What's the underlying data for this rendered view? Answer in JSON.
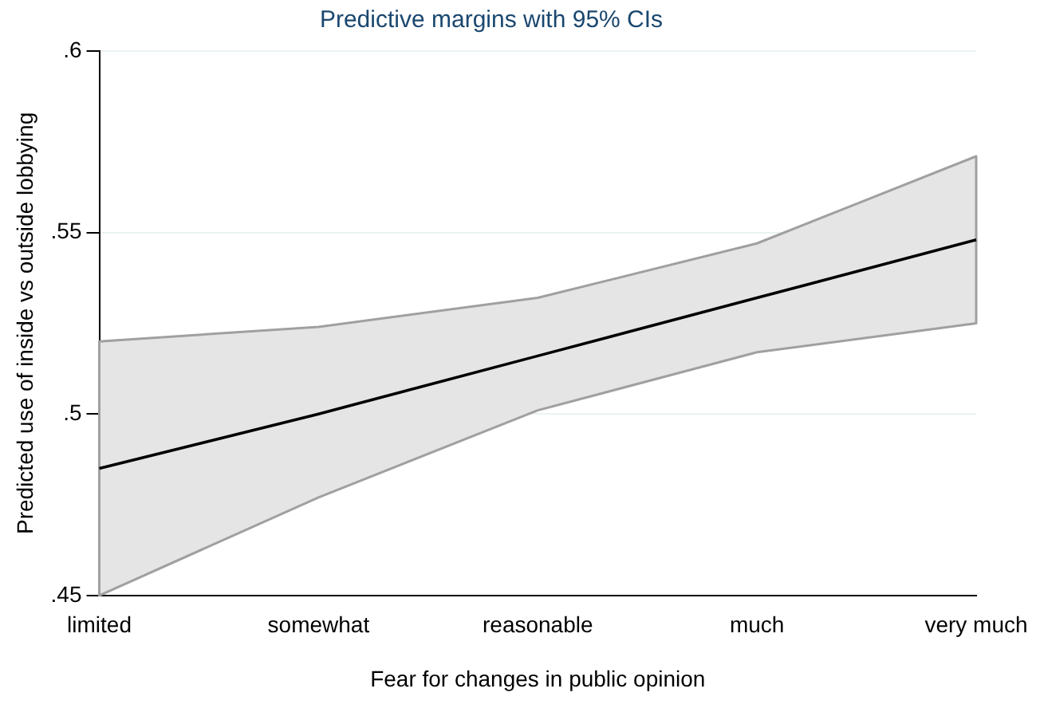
{
  "chart_data": {
    "type": "line",
    "title": "Predictive margins with 95% CIs",
    "xlabel": "Fear for changes in public opinion",
    "ylabel": "Predicted use of inside vs outside lobbying",
    "categories": [
      "limited",
      "somewhat",
      "reasonable",
      "much",
      "very much"
    ],
    "series": [
      {
        "color": "#000000",
        "values": [
          0.485,
          0.5,
          0.516,
          0.532,
          0.548
        ],
        "lower": [
          0.45,
          0.477,
          0.501,
          0.517,
          0.525
        ],
        "upper": [
          0.52,
          0.524,
          0.532,
          0.547,
          0.571
        ]
      }
    ],
    "ylim": [
      0.45,
      0.6
    ],
    "yticks": [
      {
        "value": 0.45,
        "label": ".45"
      },
      {
        "value": 0.5,
        "label": ".5"
      },
      {
        "value": 0.55,
        "label": ".55"
      },
      {
        "value": 0.6,
        "label": ".6"
      }
    ],
    "grid": "y",
    "legend": false,
    "marker": "none",
    "line_style": "solid"
  }
}
